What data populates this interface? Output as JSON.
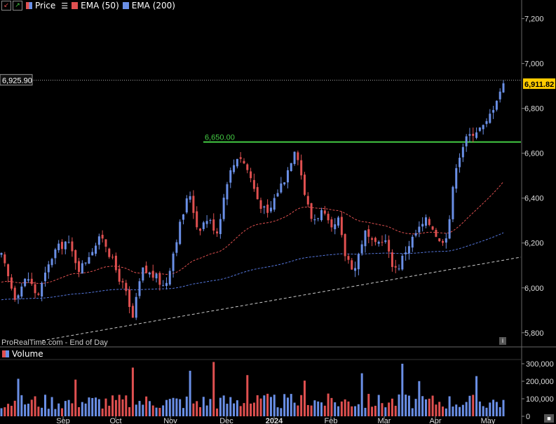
{
  "legend": {
    "down_icon": "arrow-down-icon",
    "up_icon": "arrow-up-icon",
    "price_label": "Price",
    "ema50_label": "EMA (50)",
    "ema200_label": "EMA (200)",
    "menu_icon": "list-icon"
  },
  "footer": "ProRealTime.com - End of Day",
  "volume_label": "Volume",
  "colors": {
    "up": "#6a8fe6",
    "down": "#e05050",
    "ema50": "#e05050",
    "ema200": "#5577dd",
    "resistance": "#44cc44",
    "trend": "#cccccc"
  },
  "chart_data": {
    "type": "candlestick",
    "x_tick_labels": [
      "Sep",
      "Oct",
      "Nov",
      "Dec",
      "2024",
      "Feb",
      "Mar",
      "Apr",
      "May"
    ],
    "y_tick_labels": [
      "5,800",
      "6,000",
      "6,200",
      "6,400",
      "6,600",
      "6,800",
      "7,000",
      "7,200"
    ],
    "ylim": [
      5740,
      7230
    ],
    "volume_tick_labels": [
      "0",
      "100,000",
      "200,000",
      "300,000"
    ],
    "volume_ylim": [
      0,
      320000
    ],
    "last_price_label": "6,911.82",
    "last_price": 6911.82,
    "high_marker_label": "6,925.90",
    "high_marker": 6925.9,
    "resistance_label": "6,650.00",
    "resistance": 6650,
    "series": [
      {
        "name": "EMA (50)",
        "start": 6020,
        "end": 6420
      },
      {
        "name": "EMA (200)",
        "start": 5945,
        "end": 6260
      }
    ],
    "anchors": [
      [
        0,
        6140
      ],
      [
        8,
        5960
      ],
      [
        16,
        6050
      ],
      [
        22,
        5960
      ],
      [
        32,
        6160
      ],
      [
        40,
        6210
      ],
      [
        48,
        6080
      ],
      [
        56,
        6180
      ],
      [
        62,
        6230
      ],
      [
        70,
        6080
      ],
      [
        76,
        5980
      ],
      [
        80,
        5850
      ],
      [
        86,
        6080
      ],
      [
        94,
        6050
      ],
      [
        100,
        6000
      ],
      [
        108,
        6250
      ],
      [
        115,
        6430
      ],
      [
        120,
        6260
      ],
      [
        126,
        6310
      ],
      [
        132,
        6250
      ],
      [
        138,
        6480
      ],
      [
        145,
        6600
      ],
      [
        151,
        6520
      ],
      [
        157,
        6390
      ],
      [
        163,
        6320
      ],
      [
        168,
        6420
      ],
      [
        174,
        6500
      ],
      [
        180,
        6640
      ],
      [
        186,
        6400
      ],
      [
        190,
        6300
      ],
      [
        196,
        6340
      ],
      [
        202,
        6250
      ],
      [
        206,
        6300
      ],
      [
        210,
        6150
      ],
      [
        216,
        6080
      ],
      [
        222,
        6250
      ],
      [
        228,
        6180
      ],
      [
        234,
        6230
      ],
      [
        238,
        6120
      ],
      [
        242,
        6080
      ],
      [
        248,
        6180
      ],
      [
        254,
        6250
      ],
      [
        260,
        6300
      ],
      [
        264,
        6270
      ],
      [
        268,
        6200
      ],
      [
        273,
        6250
      ],
      [
        278,
        6550
      ],
      [
        283,
        6650
      ],
      [
        289,
        6700
      ],
      [
        296,
        6720
      ],
      [
        303,
        6850
      ],
      [
        307,
        6911
      ]
    ]
  }
}
